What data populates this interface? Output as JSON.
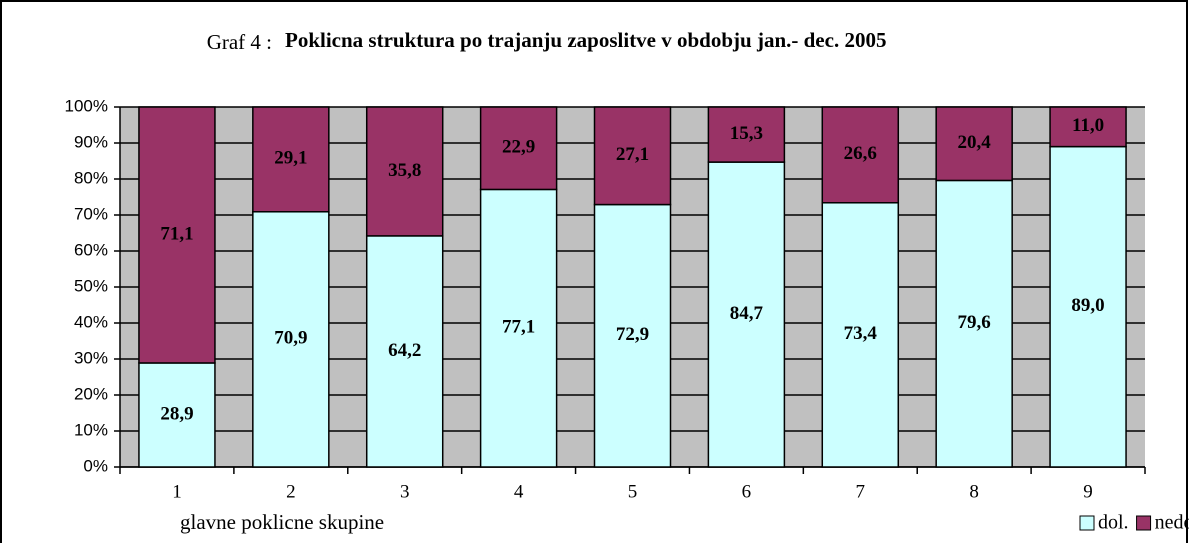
{
  "chart_data": {
    "type": "stacked_bar",
    "figure_label": "Graf 4 :",
    "title": "Poklicna struktura po trajanju zaposlitve v obdobju jan.- dec. 2005",
    "x_label": "glavne poklicne skupine",
    "categories": [
      "1",
      "2",
      "3",
      "4",
      "5",
      "6",
      "7",
      "8",
      "9"
    ],
    "series": [
      {
        "name": "dol.",
        "color": "#ccffff",
        "values": [
          28.9,
          70.9,
          64.2,
          77.1,
          72.9,
          84.7,
          73.4,
          79.6,
          89.0
        ],
        "value_labels": [
          "28,9",
          "70,9",
          "64,2",
          "77,1",
          "72,9",
          "84,7",
          "73,4",
          "79,6",
          "89,0"
        ]
      },
      {
        "name": "nedol.",
        "color": "#993366",
        "values": [
          71.1,
          29.1,
          35.8,
          22.9,
          27.1,
          15.3,
          26.6,
          20.4,
          11.0
        ],
        "value_labels": [
          "71,1",
          "29,1",
          "35,8",
          "22,9",
          "27,1",
          "15,3",
          "26,6",
          "20,4",
          "11,0"
        ]
      }
    ],
    "ylim": [
      0,
      100
    ],
    "yticks": [
      {
        "value": 0,
        "label": "0%"
      },
      {
        "value": 10,
        "label": "10%"
      },
      {
        "value": 20,
        "label": "20%"
      },
      {
        "value": 30,
        "label": "30%"
      },
      {
        "value": 40,
        "label": "40%"
      },
      {
        "value": 50,
        "label": "50%"
      },
      {
        "value": 60,
        "label": "60%"
      },
      {
        "value": 70,
        "label": "70%"
      },
      {
        "value": 80,
        "label": "80%"
      },
      {
        "value": 90,
        "label": "90%"
      },
      {
        "value": 100,
        "label": "100%"
      }
    ],
    "grid": true,
    "plot_background": "#c0c0c0",
    "legend": "bottom-right"
  }
}
